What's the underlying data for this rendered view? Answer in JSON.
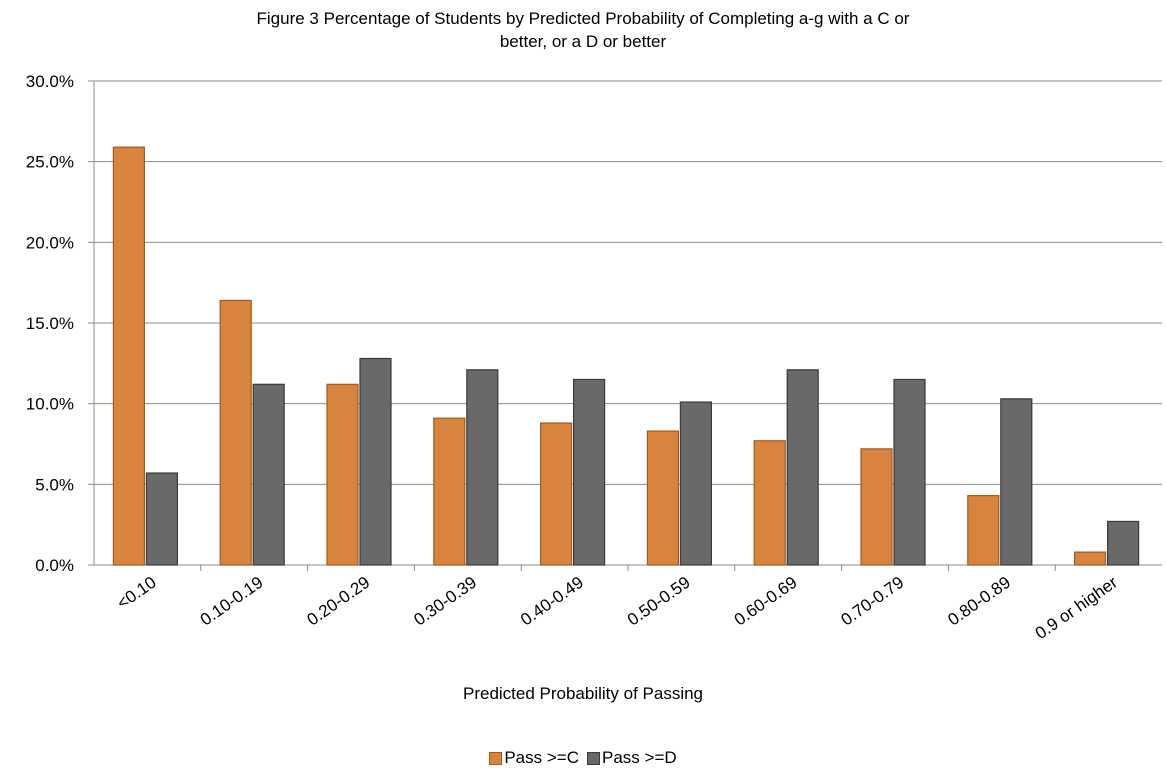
{
  "chart_data": {
    "type": "bar",
    "title_line1": "Figure 3 Percentage of Students by Predicted Probability of Completing a-g with a C or",
    "title_line2": "better, or a D or better",
    "xlabel": "Predicted Probability of Passing",
    "ylabel": "",
    "ylim": [
      0,
      30
    ],
    "yticks": [
      "0.0%",
      "5.0%",
      "10.0%",
      "15.0%",
      "20.0%",
      "25.0%",
      "30.0%"
    ],
    "grid": true,
    "legend_position": "bottom",
    "categories": [
      "<0.10",
      "0.10-0.19",
      "0.20-0.29",
      "0.30-0.39",
      "0.40-0.49",
      "0.50-0.59",
      "0.60-0.69",
      "0.70-0.79",
      "0.80-0.89",
      "0.9 or higher"
    ],
    "series": [
      {
        "name": "Pass >=C",
        "color": "#d9843e",
        "stroke": "#a35a1e",
        "values": [
          25.9,
          16.4,
          11.2,
          9.1,
          8.8,
          8.3,
          7.7,
          7.2,
          4.3,
          0.8
        ]
      },
      {
        "name": "Pass >=D",
        "color": "#696969",
        "stroke": "#3a3a3a",
        "values": [
          5.7,
          11.2,
          12.8,
          12.1,
          11.5,
          10.1,
          12.1,
          11.5,
          10.3,
          2.7
        ]
      }
    ]
  }
}
